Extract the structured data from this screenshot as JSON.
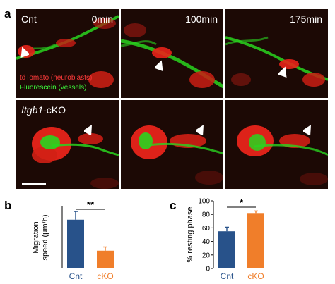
{
  "panel_a": {
    "letter": "a",
    "time_labels": [
      "0min",
      "100min",
      "175min"
    ],
    "row_labels": {
      "cnt": "Cnt",
      "ko_gene": "Itgb1",
      "ko_suffix": "-cKO"
    },
    "legend": {
      "red": "tdTomato (neuroblasts)",
      "green": "Fluorescein (vessels)"
    },
    "colors": {
      "red": "#e8241a",
      "green": "#29d41f",
      "bg": "#1c0905"
    }
  },
  "panel_b": {
    "letter": "b"
  },
  "panel_c": {
    "letter": "c"
  },
  "chart_data": [
    {
      "type": "bar",
      "ylabel": "Migration speed (μm/h)",
      "ylabel_lines": [
        "Migration",
        "speed (μm/h)"
      ],
      "categories": [
        "Cnt",
        "cKO"
      ],
      "values": [
        11.8,
        4.3
      ],
      "errors": [
        2.0,
        0.9
      ],
      "colors": [
        "#28528a",
        "#f07e2a"
      ],
      "ylim": [
        0,
        15
      ],
      "significance": "**"
    },
    {
      "type": "bar",
      "ylabel": "% resting phase",
      "categories": [
        "Cnt",
        "cKO"
      ],
      "values": [
        55,
        82
      ],
      "errors": [
        6,
        3
      ],
      "colors": [
        "#28528a",
        "#f07e2a"
      ],
      "ylim": [
        0,
        100
      ],
      "yticks": [
        0,
        20,
        40,
        60,
        80,
        100
      ],
      "significance": "*"
    }
  ]
}
